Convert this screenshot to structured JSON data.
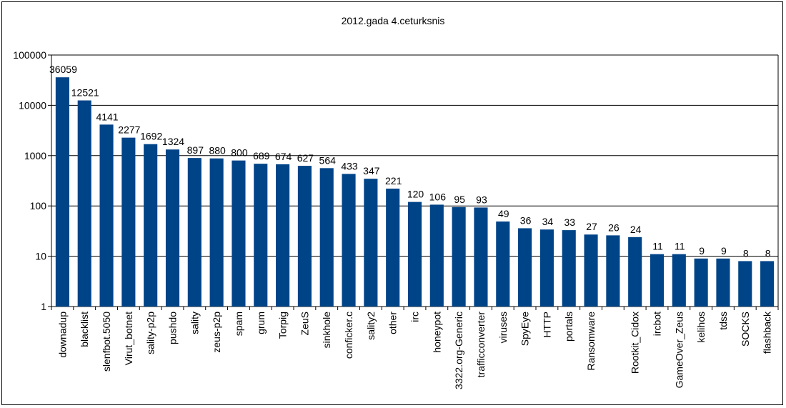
{
  "chart_data": {
    "type": "bar",
    "title": "2012.gada 4.ceturksnis",
    "xlabel": "",
    "ylabel": "",
    "y_scale": "log",
    "ylim": [
      1,
      100000
    ],
    "y_ticks": [
      1,
      10,
      100,
      1000,
      10000,
      100000
    ],
    "y_tick_labels": [
      "1",
      "10",
      "100",
      "1000",
      "10000",
      "100000"
    ],
    "grid": true,
    "legend": "none",
    "bar_color": "#004488",
    "categories": [
      "downadup",
      "blacklist",
      "slenfbot.5050",
      "Virut_botnet",
      "sality-p2p",
      "pushdo",
      "sality",
      "zeus-p2p",
      "spam",
      "grum",
      "Torpig",
      "ZeuS",
      "sinkhole",
      "conficker.c",
      "sality2",
      "other",
      "irc",
      "honeypot",
      "3322.org-Generic",
      "trafficconverter",
      "viruses",
      "SpyEye",
      "HTTP",
      "portals",
      "Ransomware",
      "",
      "Rootkit_Cidox",
      "ircbot",
      "GameOver_Zeus",
      "kelihos",
      "tdss",
      "SOCKS",
      "flashback"
    ],
    "values": [
      36059,
      12521,
      4141,
      2277,
      1692,
      1324,
      897,
      880,
      800,
      689,
      674,
      627,
      564,
      433,
      347,
      221,
      120,
      106,
      95,
      93,
      49,
      36,
      34,
      33,
      27,
      26,
      24,
      11,
      11,
      9,
      9,
      8,
      8
    ]
  }
}
